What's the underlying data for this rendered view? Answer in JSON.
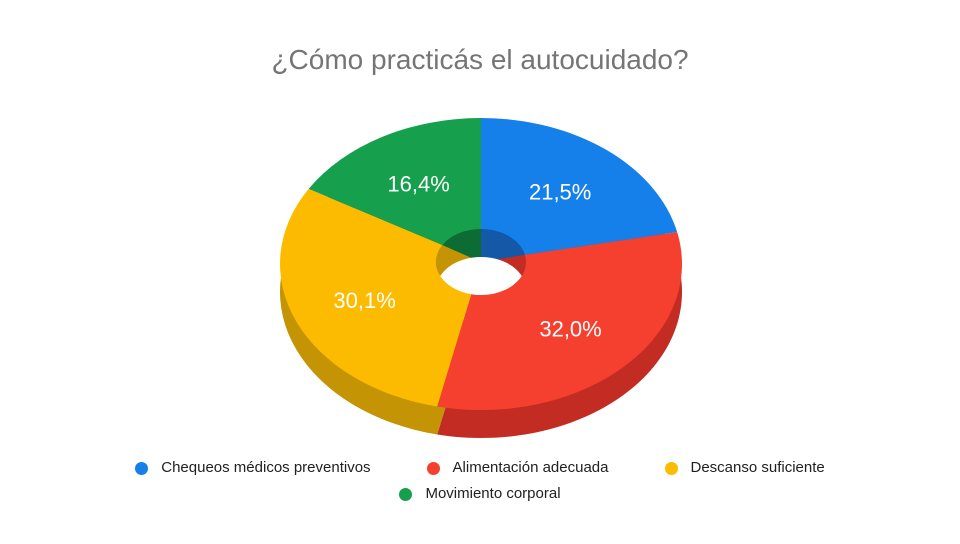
{
  "chart_data": {
    "type": "pie",
    "subtype": "3d-donut",
    "title": "¿Cómo practicás el autocuidado?",
    "categories": [
      "Chequeos médicos preventivos",
      "Alimentación adecuada",
      "Descanso suficiente",
      "Movimiento corporal"
    ],
    "values": [
      21.5,
      32.0,
      30.1,
      16.4
    ],
    "value_labels": [
      "21,5%",
      "32,0%",
      "30,1%",
      "16,4%"
    ],
    "colors": [
      "#1680EA",
      "#F6402F",
      "#FDBB00",
      "#16A04D"
    ],
    "side_colors": [
      "#1459A8",
      "#C32C22",
      "#C59404",
      "#0D6B34"
    ],
    "start_angle_deg": 0,
    "direction": "clockwise",
    "legend_position": "bottom",
    "legend_rows": [
      [
        0,
        1,
        2
      ],
      [
        3
      ]
    ],
    "title_color": "#757575",
    "legend_text_color": "#212121",
    "slice_label_color": "#FFFFFF",
    "hole_color": "#FFFFFF",
    "background_color": "#FFFFFF"
  }
}
